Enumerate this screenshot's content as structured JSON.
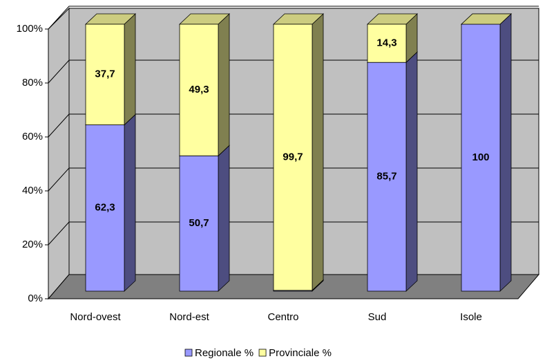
{
  "chart_data": {
    "type": "bar",
    "stacked": true,
    "categories": [
      "Nord-ovest",
      "Nord-est",
      "Centro",
      "Sud",
      "Isole"
    ],
    "series": [
      {
        "name": "Regionale %",
        "color": "#9999ff",
        "values": [
          62.3,
          50.7,
          0.3,
          85.7,
          100
        ],
        "value_labels": [
          "62,3",
          "50,7",
          null,
          "85,7",
          "100"
        ]
      },
      {
        "name": "Provinciale %",
        "color": "#ffffa0",
        "values": [
          37.7,
          49.3,
          99.7,
          14.3,
          0
        ],
        "value_labels": [
          "37,7",
          "49,3",
          "99,7",
          "14,3",
          null
        ]
      }
    ],
    "ylim": [
      0,
      100
    ],
    "yticks": [
      {
        "value": 0,
        "label": "0%"
      },
      {
        "value": 20,
        "label": "20%"
      },
      {
        "value": 40,
        "label": "40%"
      },
      {
        "value": 60,
        "label": "60%"
      },
      {
        "value": 80,
        "label": "80%"
      },
      {
        "value": 100,
        "label": "100%"
      }
    ],
    "grid": true,
    "legend": "bottom"
  }
}
